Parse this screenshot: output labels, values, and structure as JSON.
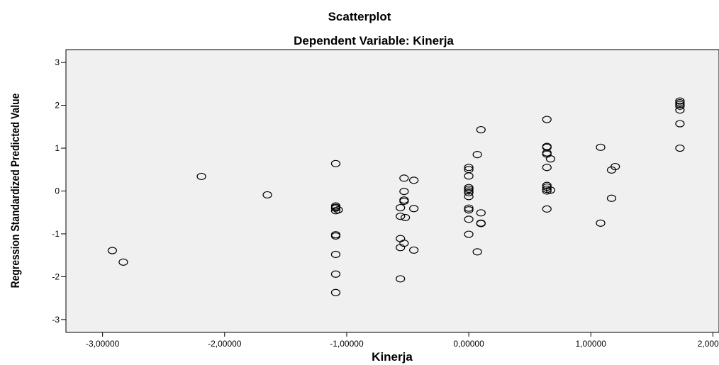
{
  "chart_data": {
    "type": "scatter",
    "title": "Scatterplot",
    "subtitle": "Dependent Variable: Kinerja",
    "xlabel": "Kinerja",
    "ylabel": "Regression Standardized Predicted Value",
    "xlim": [
      -3.3,
      2.05
    ],
    "ylim": [
      -3.3,
      3.3
    ],
    "x_ticks": [
      -3,
      -2,
      -1,
      0,
      1,
      2
    ],
    "x_tick_labels": [
      "-3,00000",
      "-2,00000",
      "-1,00000",
      "0,00000",
      "1,00000",
      "2,00000"
    ],
    "y_ticks": [
      -3,
      -2,
      -1,
      0,
      1,
      2,
      3
    ],
    "y_tick_labels": [
      "-3",
      "-2",
      "-1",
      "0",
      "1",
      "2",
      "3"
    ],
    "grid": false,
    "plot_background": "#f0f0f0",
    "marker": "open-circle",
    "points": [
      {
        "x": -2.92,
        "y": -1.39
      },
      {
        "x": -2.83,
        "y": -1.66
      },
      {
        "x": -2.19,
        "y": 0.34
      },
      {
        "x": -1.65,
        "y": -0.09
      },
      {
        "x": -1.09,
        "y": 0.64
      },
      {
        "x": -1.09,
        "y": -0.35
      },
      {
        "x": -1.09,
        "y": -0.38
      },
      {
        "x": -1.09,
        "y": -0.4
      },
      {
        "x": -1.09,
        "y": -0.46
      },
      {
        "x": -1.07,
        "y": -0.44
      },
      {
        "x": -1.09,
        "y": -1.02
      },
      {
        "x": -1.09,
        "y": -1.05
      },
      {
        "x": -1.09,
        "y": -1.48
      },
      {
        "x": -1.09,
        "y": -1.94
      },
      {
        "x": -1.09,
        "y": -2.37
      },
      {
        "x": -0.53,
        "y": 0.3
      },
      {
        "x": -0.45,
        "y": 0.25
      },
      {
        "x": -0.53,
        "y": -0.01
      },
      {
        "x": -0.53,
        "y": -0.21
      },
      {
        "x": -0.53,
        "y": -0.24
      },
      {
        "x": -0.56,
        "y": -0.39
      },
      {
        "x": -0.45,
        "y": -0.41
      },
      {
        "x": -0.56,
        "y": -0.59
      },
      {
        "x": -0.52,
        "y": -0.62
      },
      {
        "x": -0.56,
        "y": -1.11
      },
      {
        "x": -0.53,
        "y": -1.22
      },
      {
        "x": -0.56,
        "y": -1.32
      },
      {
        "x": -0.45,
        "y": -1.38
      },
      {
        "x": -0.56,
        "y": -2.05
      },
      {
        "x": 0.1,
        "y": 1.43
      },
      {
        "x": 0.07,
        "y": 0.85
      },
      {
        "x": 0.0,
        "y": 0.55
      },
      {
        "x": 0.0,
        "y": 0.5
      },
      {
        "x": 0.0,
        "y": 0.35
      },
      {
        "x": 0.0,
        "y": 0.08
      },
      {
        "x": 0.0,
        "y": 0.04
      },
      {
        "x": 0.0,
        "y": 0.0
      },
      {
        "x": 0.0,
        "y": -0.04
      },
      {
        "x": 0.0,
        "y": -0.13
      },
      {
        "x": 0.0,
        "y": -0.4
      },
      {
        "x": 0.0,
        "y": -0.44
      },
      {
        "x": 0.1,
        "y": -0.51
      },
      {
        "x": 0.0,
        "y": -0.66
      },
      {
        "x": 0.1,
        "y": -0.75
      },
      {
        "x": 0.1,
        "y": -0.76
      },
      {
        "x": 0.0,
        "y": -1.01
      },
      {
        "x": 0.07,
        "y": -1.42
      },
      {
        "x": 0.64,
        "y": 1.67
      },
      {
        "x": 0.64,
        "y": 1.04
      },
      {
        "x": 0.64,
        "y": 1.02
      },
      {
        "x": 0.64,
        "y": 0.89
      },
      {
        "x": 0.64,
        "y": 0.86
      },
      {
        "x": 0.67,
        "y": 0.75
      },
      {
        "x": 0.64,
        "y": 0.55
      },
      {
        "x": 0.64,
        "y": 0.13
      },
      {
        "x": 0.64,
        "y": 0.09
      },
      {
        "x": 0.64,
        "y": 0.04
      },
      {
        "x": 0.67,
        "y": 0.02
      },
      {
        "x": 0.64,
        "y": 0.0
      },
      {
        "x": 0.64,
        "y": -0.42
      },
      {
        "x": 1.08,
        "y": 1.02
      },
      {
        "x": 1.2,
        "y": 0.57
      },
      {
        "x": 1.17,
        "y": 0.49
      },
      {
        "x": 1.17,
        "y": -0.17
      },
      {
        "x": 1.08,
        "y": -0.75
      },
      {
        "x": 1.73,
        "y": 2.1
      },
      {
        "x": 1.73,
        "y": 2.06
      },
      {
        "x": 1.73,
        "y": 2.02
      },
      {
        "x": 1.73,
        "y": 1.98
      },
      {
        "x": 1.73,
        "y": 1.89
      },
      {
        "x": 1.73,
        "y": 1.57
      },
      {
        "x": 1.73,
        "y": 1.0
      }
    ]
  }
}
